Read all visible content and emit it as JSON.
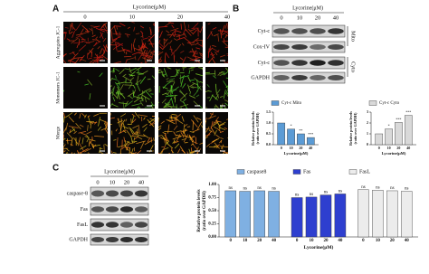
{
  "figure": {
    "panel_a": {
      "label": "A",
      "treatment": "Lycorine(μM)",
      "doses": [
        "0",
        "10",
        "20",
        "40"
      ],
      "rows": [
        "Aggregates JC-1",
        "Monomers JC-1",
        "Merge"
      ]
    },
    "panel_b": {
      "label": "B",
      "treatment": "Lycorine(μM)",
      "doses": [
        "0",
        "10",
        "20",
        "40"
      ],
      "blots": [
        "Cyt-c",
        "Cox-IV",
        "Cyt-c",
        "GAPDH"
      ],
      "fractions": [
        "Mito",
        "Cyto"
      ]
    },
    "panel_c": {
      "label": "C",
      "treatment": "Lycorine(μM)",
      "doses": [
        "0",
        "10",
        "20",
        "40"
      ],
      "blots": [
        "caspase-8",
        "Fas",
        "FasL",
        "GAPDH"
      ]
    }
  },
  "chart_data": [
    {
      "type": "bar",
      "categories": [
        "0",
        "10",
        "20",
        "40"
      ],
      "series": [
        {
          "name": "Cyt-c Mito",
          "color": "#5b9bd5",
          "values": [
            1.0,
            0.72,
            0.5,
            0.33
          ],
          "significance": [
            null,
            "*",
            "**",
            "***"
          ]
        }
      ],
      "ylim": [
        0,
        1.5
      ],
      "yticks": [
        {
          "value": 0,
          "label": "0.0"
        },
        {
          "value": 0.5,
          "label": "0.5"
        },
        {
          "value": 1,
          "label": "1.0"
        },
        {
          "value": 1.5,
          "label": "1.5"
        }
      ],
      "y_label": [
        "Relative protein levels",
        "(ratio over GAPDH)"
      ],
      "x_label": "Lycorine(μM)"
    },
    {
      "type": "bar",
      "categories": [
        "0",
        "10",
        "20",
        "40"
      ],
      "series": [
        {
          "name": "Cyt-c Cyto",
          "color": "#d9d9d9",
          "values": [
            1.0,
            1.45,
            2.05,
            2.7
          ],
          "significance": [
            null,
            "*",
            "***",
            "***"
          ]
        }
      ],
      "ylim": [
        0,
        3
      ],
      "yticks": [
        0,
        1,
        2,
        3
      ],
      "y_label": [
        "Relative protein levels",
        "(ratio over GAPDH)"
      ],
      "x_label": "Lycorine(μM)"
    },
    {
      "type": "bar",
      "categories": [
        "0",
        "10",
        "20",
        "40"
      ],
      "series": [
        {
          "name": "caspase8",
          "color": "#7fb0e2",
          "values": [
            0.88,
            0.87,
            0.88,
            0.87
          ],
          "significance": [
            "ns",
            "ns",
            "ns",
            "ns"
          ]
        },
        {
          "name": "Fas",
          "color": "#2e3fcf",
          "values": [
            0.75,
            0.76,
            0.8,
            0.82
          ],
          "significance": [
            "ns",
            "ns",
            "ns",
            "ns"
          ]
        },
        {
          "name": "FasL",
          "color": "#ececec",
          "values": [
            0.9,
            0.89,
            0.88,
            0.87
          ],
          "significance": [
            "ns",
            "ns",
            "ns",
            "ns"
          ]
        }
      ],
      "ylim": [
        0,
        1
      ],
      "yticks": [
        {
          "value": 0,
          "label": "0.00"
        },
        {
          "value": 0.25,
          "label": "0.25"
        },
        {
          "value": 0.5,
          "label": "0.50"
        },
        {
          "value": 0.75,
          "label": "0.75"
        },
        {
          "value": 1,
          "label": "1.00"
        }
      ],
      "y_label": [
        "Relative protein levels",
        "(ratio over GAPDH)"
      ],
      "x_label": "Lycorine(μM)"
    }
  ]
}
